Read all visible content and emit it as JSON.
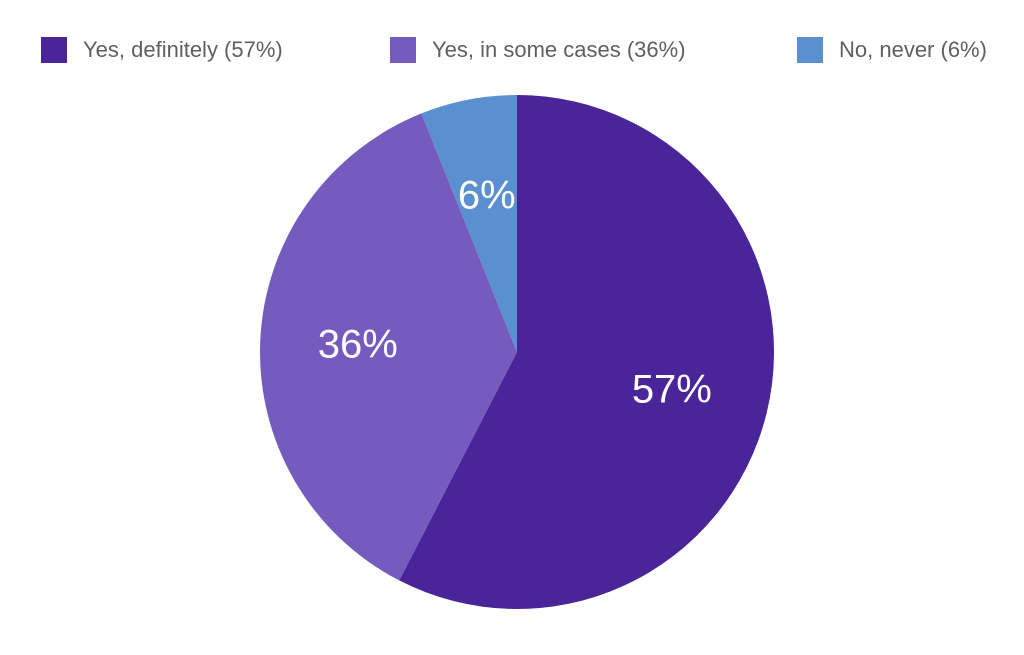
{
  "chart_data": {
    "type": "pie",
    "series": [
      {
        "name": "Yes, definitely (57%)",
        "value": 57,
        "label": "57%",
        "color": "#4a2499"
      },
      {
        "name": "Yes, in some cases (36%)",
        "value": 36,
        "label": "36%",
        "color": "#765bbe"
      },
      {
        "name": "No, never (6%)",
        "value": 6,
        "label": "6%",
        "color": "#5a90cf"
      }
    ],
    "start_angle_deg": 0,
    "direction": "clockwise",
    "legend_position": "top"
  }
}
